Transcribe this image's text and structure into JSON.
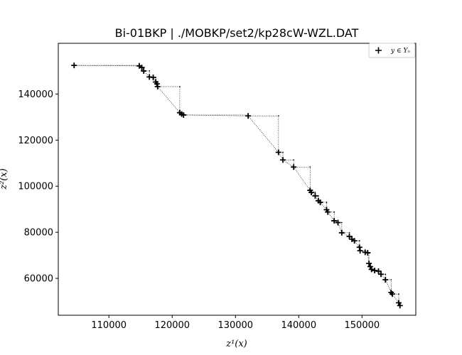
{
  "chart_data": {
    "type": "scatter",
    "title": "Bi-01BKP | ./MOBKP/set2/kp28cW-WZL.DAT",
    "xlabel": "z¹(x)",
    "ylabel": "z²(x)",
    "xlim": [
      102000,
      158500
    ],
    "ylim": [
      44000,
      162000
    ],
    "xticks": [
      110000,
      120000,
      130000,
      140000,
      150000
    ],
    "yticks": [
      60000,
      80000,
      100000,
      120000,
      140000
    ],
    "xtick_labels": [
      "110000",
      "120000",
      "130000",
      "140000",
      "150000"
    ],
    "ytick_labels": [
      "60000",
      "80000",
      "100000",
      "120000",
      "140000"
    ],
    "legend": {
      "label": "y ∈ Yₙ",
      "placement": "top-right"
    },
    "grid": false,
    "marker_color": "#000000",
    "series": [
      {
        "marker": "plus",
        "points": [
          [
            104500,
            152400
          ],
          [
            114800,
            152200
          ],
          [
            115200,
            151500
          ],
          [
            115500,
            150000
          ],
          [
            116400,
            147400
          ],
          [
            117000,
            147200
          ],
          [
            117400,
            145200
          ],
          [
            117600,
            144400
          ],
          [
            117700,
            143200
          ],
          [
            121200,
            131900
          ],
          [
            121500,
            131300
          ],
          [
            121800,
            130900
          ],
          [
            132000,
            130500
          ],
          [
            136800,
            114700
          ],
          [
            137500,
            111400
          ],
          [
            139200,
            108300
          ],
          [
            141800,
            98200
          ],
          [
            142000,
            97300
          ],
          [
            142600,
            95800
          ],
          [
            143100,
            93700
          ],
          [
            143400,
            93000
          ],
          [
            144400,
            89800
          ],
          [
            144600,
            88800
          ],
          [
            145600,
            85000
          ],
          [
            146200,
            84200
          ],
          [
            146800,
            79800
          ],
          [
            148000,
            78200
          ],
          [
            148400,
            77000
          ],
          [
            148800,
            76300
          ],
          [
            149600,
            73500
          ],
          [
            149700,
            72000
          ],
          [
            150500,
            71300
          ],
          [
            150900,
            71100
          ],
          [
            151100,
            66500
          ],
          [
            151300,
            65100
          ],
          [
            151500,
            63900
          ],
          [
            152000,
            63400
          ],
          [
            152600,
            63100
          ],
          [
            153000,
            61800
          ],
          [
            153700,
            59400
          ],
          [
            154600,
            53900
          ],
          [
            154800,
            53200
          ],
          [
            155800,
            49400
          ],
          [
            156000,
            48200
          ]
        ]
      }
    ]
  }
}
